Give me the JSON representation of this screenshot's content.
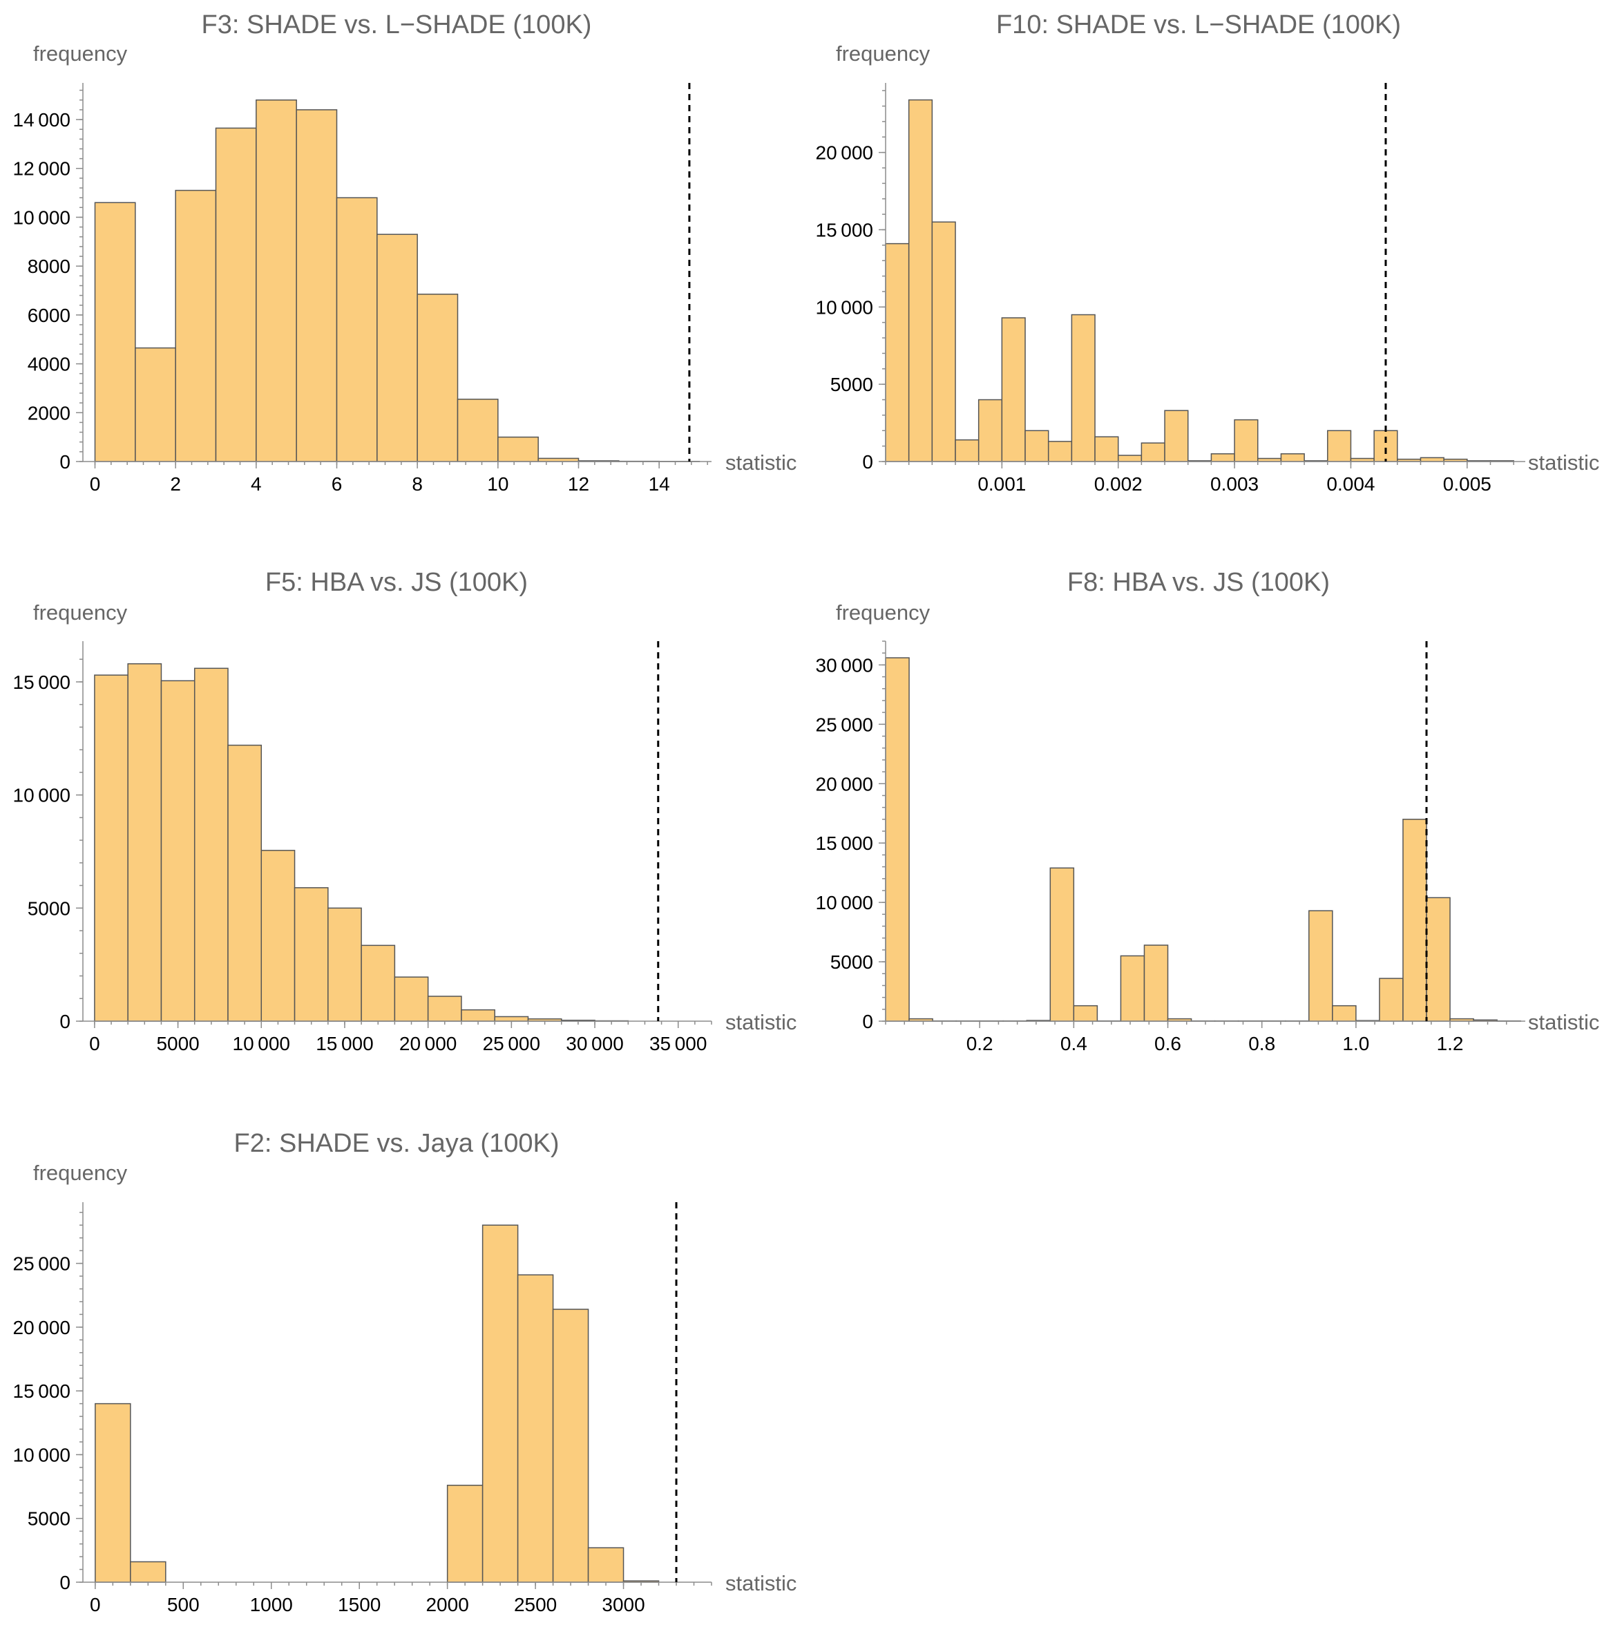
{
  "chart_data": [
    {
      "type": "bar",
      "title": "F3: SHADE vs. L−SHADE (100K)",
      "xlabel": "statistic",
      "ylabel": "frequency",
      "xlim": [
        -0.3,
        15.3
      ],
      "ylim": [
        0,
        15500
      ],
      "xticks": [
        0,
        2,
        4,
        6,
        8,
        10,
        12,
        14
      ],
      "xtick_labels": [
        "0",
        "2",
        "4",
        "6",
        "8",
        "10",
        "12",
        "14"
      ],
      "yticks": [
        0,
        2000,
        4000,
        6000,
        8000,
        10000,
        12000,
        14000
      ],
      "ytick_labels": [
        "0",
        "2000",
        "4000",
        "6000",
        "8000",
        "10 000",
        "12 000",
        "14 000"
      ],
      "bin_edges": [
        0,
        1,
        2,
        3,
        4,
        5,
        6,
        7,
        8,
        9,
        10,
        11,
        12,
        13,
        14,
        15
      ],
      "values": [
        10600,
        4650,
        11100,
        13650,
        14800,
        14400,
        10800,
        9300,
        6850,
        2550,
        1000,
        130,
        30,
        10,
        5
      ],
      "reference_line": 14.75
    },
    {
      "type": "bar",
      "title": "F10: SHADE vs. L−SHADE (100K)",
      "xlabel": "statistic",
      "ylabel": "frequency",
      "xlim": [
        0,
        0.0055
      ],
      "ylim": [
        0,
        24500
      ],
      "xticks": [
        0.001,
        0.002,
        0.003,
        0.004,
        0.005
      ],
      "xtick_labels": [
        "0.001",
        "0.002",
        "0.003",
        "0.004",
        "0.005"
      ],
      "yticks": [
        0,
        5000,
        10000,
        15000,
        20000
      ],
      "ytick_labels": [
        "0",
        "5000",
        "10 000",
        "15 000",
        "20 000"
      ],
      "bin_edges": [
        0,
        0.0002,
        0.0004,
        0.0006,
        0.0008,
        0.001,
        0.0012,
        0.0014,
        0.0016,
        0.0018,
        0.002,
        0.0022,
        0.0024,
        0.0026,
        0.0028,
        0.003,
        0.0032,
        0.0034,
        0.0036,
        0.0038,
        0.004,
        0.0042,
        0.0044,
        0.0046,
        0.0048,
        0.005,
        0.0052,
        0.0054
      ],
      "values": [
        14100,
        23400,
        15500,
        1400,
        4000,
        9300,
        2000,
        1300,
        9500,
        1600,
        400,
        1200,
        3300,
        50,
        500,
        2700,
        200,
        500,
        50,
        2000,
        200,
        2000,
        150,
        250,
        150,
        50,
        50
      ],
      "reference_line": 0.0043
    },
    {
      "type": "bar",
      "title": "F5: HBA vs. JS (100K)",
      "xlabel": "statistic",
      "ylabel": "frequency",
      "xlim": [
        -700,
        37000
      ],
      "ylim": [
        0,
        16800
      ],
      "xticks": [
        0,
        5000,
        10000,
        15000,
        20000,
        25000,
        30000,
        35000
      ],
      "xtick_labels": [
        "0",
        "5000",
        "10 000",
        "15 000",
        "20 000",
        "25 000",
        "30 000",
        "35 000"
      ],
      "yticks": [
        0,
        5000,
        10000,
        15000
      ],
      "ytick_labels": [
        "0",
        "5000",
        "10 000",
        "15 000"
      ],
      "bin_edges": [
        0,
        2000,
        4000,
        6000,
        8000,
        10000,
        12000,
        14000,
        16000,
        18000,
        20000,
        22000,
        24000,
        26000,
        28000,
        30000,
        32000
      ],
      "values": [
        15300,
        15800,
        15050,
        15600,
        12200,
        7550,
        5900,
        5000,
        3350,
        1950,
        1100,
        500,
        200,
        100,
        40,
        15
      ],
      "reference_line": 33800
    },
    {
      "type": "bar",
      "title": "F8: HBA vs. JS (100K)",
      "xlabel": "statistic",
      "ylabel": "frequency",
      "xlim": [
        0,
        1.36
      ],
      "ylim": [
        0,
        32000
      ],
      "xticks": [
        0.2,
        0.4,
        0.6,
        0.8,
        1.0,
        1.2
      ],
      "xtick_labels": [
        "0.2",
        "0.4",
        "0.6",
        "0.8",
        "1.0",
        "1.2"
      ],
      "yticks": [
        0,
        5000,
        10000,
        15000,
        20000,
        25000,
        30000
      ],
      "ytick_labels": [
        "0",
        "5000",
        "10 000",
        "15 000",
        "20 000",
        "25 000",
        "30 000"
      ],
      "bin_edges": [
        0,
        0.05,
        0.1,
        0.15,
        0.2,
        0.25,
        0.3,
        0.35,
        0.4,
        0.45,
        0.5,
        0.55,
        0.6,
        0.65,
        0.7,
        0.75,
        0.8,
        0.85,
        0.9,
        0.95,
        1.0,
        1.05,
        1.1,
        1.15,
        1.2,
        1.25,
        1.3,
        1.35
      ],
      "values": [
        30600,
        200,
        20,
        20,
        20,
        20,
        60,
        12900,
        1300,
        20,
        5500,
        6400,
        200,
        20,
        20,
        20,
        20,
        20,
        9300,
        1300,
        50,
        3600,
        17000,
        10400,
        200,
        100,
        20
      ],
      "reference_line": 1.15
    },
    {
      "type": "bar",
      "title": "F2: SHADE vs. Jaya (100K)",
      "xlabel": "statistic",
      "ylabel": "frequency",
      "xlim": [
        -70,
        3500
      ],
      "ylim": [
        0,
        29800
      ],
      "xticks": [
        0,
        500,
        1000,
        1500,
        2000,
        2500,
        3000
      ],
      "xtick_labels": [
        "0",
        "500",
        "1000",
        "1500",
        "2000",
        "2500",
        "3000"
      ],
      "yticks": [
        0,
        5000,
        10000,
        15000,
        20000,
        25000
      ],
      "ytick_labels": [
        "0",
        "5000",
        "10 000",
        "15 000",
        "20 000",
        "25 000"
      ],
      "bin_edges": [
        0,
        200,
        400,
        600,
        800,
        1000,
        1200,
        1400,
        1600,
        1800,
        2000,
        2200,
        2400,
        2600,
        2800,
        3000,
        3200
      ],
      "values": [
        14000,
        1600,
        0,
        0,
        0,
        0,
        0,
        0,
        0,
        0,
        7600,
        28000,
        24100,
        21400,
        2700,
        100
      ],
      "reference_line": 3300
    }
  ]
}
